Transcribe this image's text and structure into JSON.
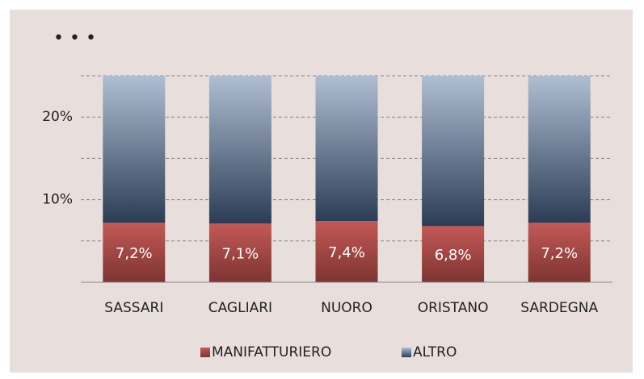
{
  "chart_data": {
    "type": "stacked_bar",
    "title": "• • •",
    "categories": [
      "SASSARI",
      "CAGLIARI",
      "NUORO",
      "ORISTANO",
      "SARDEGNA"
    ],
    "series": [
      {
        "name": "MANIFATTURIERO",
        "color": "#c0504d",
        "values": [
          7.2,
          7.1,
          7.4,
          6.8,
          7.2
        ],
        "value_labels": [
          "7,2%",
          "7,1%",
          "7,4%",
          "6,8%",
          "7,2%"
        ]
      },
      {
        "name": "ALTRO",
        "color": "#4f6f9a",
        "values": [
          17.8,
          17.9,
          17.6,
          18.2,
          17.8
        ]
      }
    ],
    "ylim": [
      0,
      25
    ],
    "yticks": [
      {
        "value": 10,
        "label": "10%"
      },
      {
        "value": 20,
        "label": "20%"
      }
    ],
    "minor_yticks": [
      5,
      15,
      25
    ],
    "grid": true,
    "legend": "bottom"
  }
}
